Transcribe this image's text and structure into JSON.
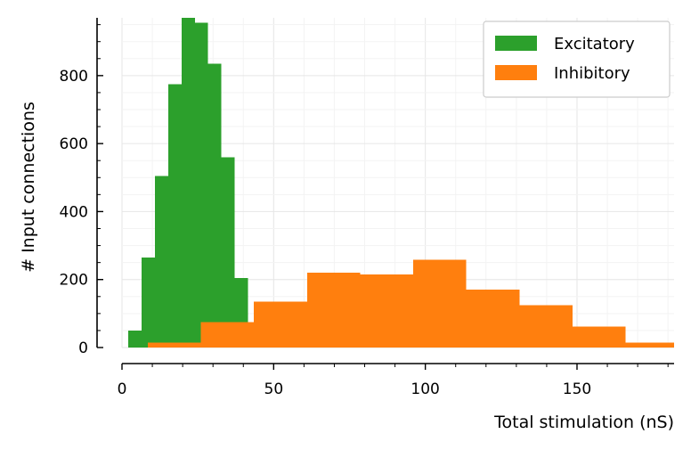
{
  "chart_data": {
    "type": "histogram",
    "xlabel": "Total stimulation (nS)",
    "ylabel": "# Input connections",
    "xlim": [
      0,
      182
    ],
    "ylim": [
      0,
      970
    ],
    "xticks": [
      0,
      50,
      100,
      150
    ],
    "yticks": [
      0,
      200,
      400,
      600,
      800
    ],
    "x_minor_step": 10,
    "y_minor_step": 50,
    "grid": true,
    "legend_position": "top-right",
    "series": [
      {
        "name": "Excitatory",
        "color": "#2ca02c",
        "bins": [
          {
            "x0": 2,
            "x1": 6.4,
            "count": 50
          },
          {
            "x0": 6.4,
            "x1": 10.8,
            "count": 265
          },
          {
            "x0": 10.8,
            "x1": 15.2,
            "count": 505
          },
          {
            "x0": 15.2,
            "x1": 19.6,
            "count": 775
          },
          {
            "x0": 19.6,
            "x1": 24.0,
            "count": 970
          },
          {
            "x0": 24.0,
            "x1": 28.4,
            "count": 955
          },
          {
            "x0": 28.4,
            "x1": 32.8,
            "count": 835
          },
          {
            "x0": 32.8,
            "x1": 37.2,
            "count": 560
          },
          {
            "x0": 37.2,
            "x1": 41.6,
            "count": 205
          }
        ]
      },
      {
        "name": "Inhibitory",
        "color": "#ff7f0e",
        "bins": [
          {
            "x0": 8.5,
            "x1": 26,
            "count": 15
          },
          {
            "x0": 26,
            "x1": 43.5,
            "count": 75
          },
          {
            "x0": 43.5,
            "x1": 61,
            "count": 135
          },
          {
            "x0": 61,
            "x1": 78.5,
            "count": 220
          },
          {
            "x0": 78.5,
            "x1": 96,
            "count": 215
          },
          {
            "x0": 96,
            "x1": 113.5,
            "count": 258
          },
          {
            "x0": 113.5,
            "x1": 131,
            "count": 170
          },
          {
            "x0": 131,
            "x1": 148.5,
            "count": 125
          },
          {
            "x0": 148.5,
            "x1": 166,
            "count": 62
          },
          {
            "x0": 166,
            "x1": 183.5,
            "count": 15
          }
        ]
      }
    ]
  }
}
